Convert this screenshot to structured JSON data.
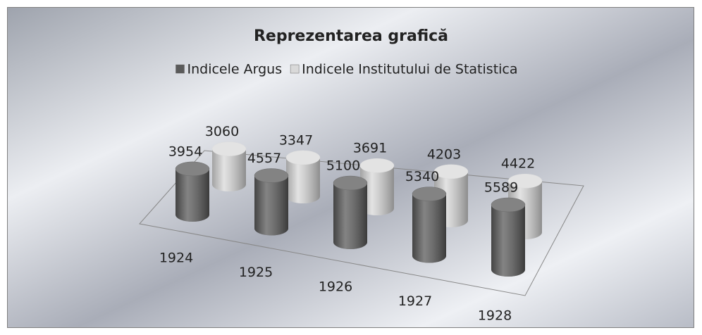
{
  "chart_data": {
    "type": "cylinder3d",
    "title": "Reprezentarea grafică",
    "categories": [
      "1924",
      "1925",
      "1926",
      "1927",
      "1928"
    ],
    "series": [
      {
        "name": "Indicele Argus",
        "color": "#5a5a5a",
        "values": [
          3954,
          4557,
          5100,
          5340,
          5589
        ]
      },
      {
        "name": "Indicele Institutului de Statistica",
        "color": "#d9d9d9",
        "values": [
          3060,
          3347,
          3691,
          4203,
          4422
        ]
      }
    ],
    "legend": "top"
  }
}
